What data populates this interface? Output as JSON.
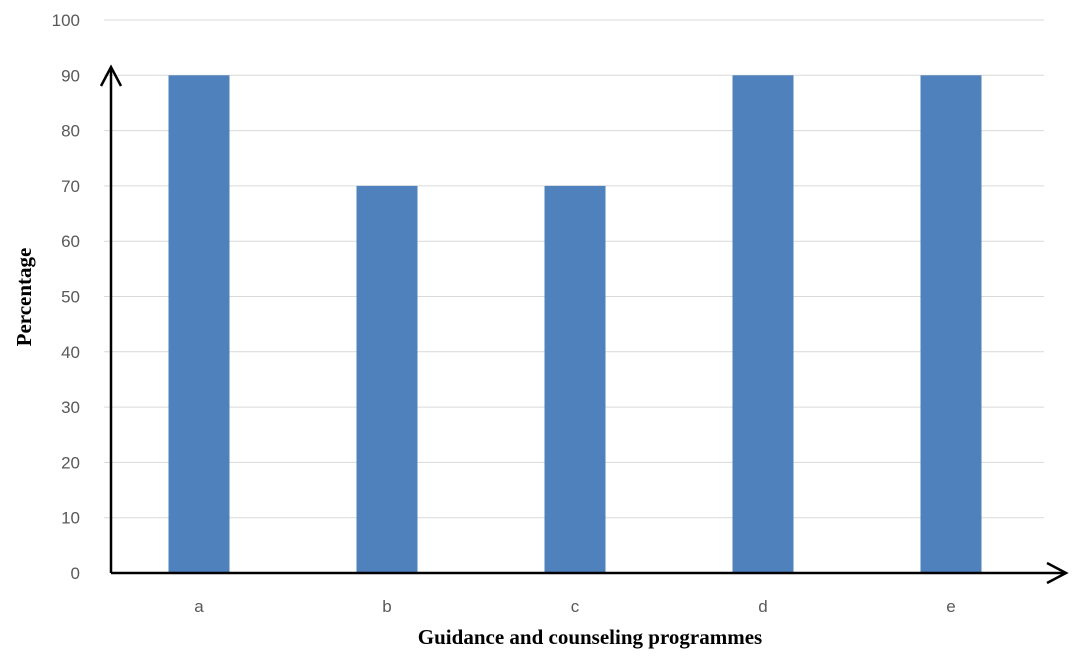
{
  "chart_data": {
    "type": "bar",
    "categories": [
      "a",
      "b",
      "c",
      "d",
      "e"
    ],
    "values": [
      90,
      70,
      70,
      90,
      90
    ],
    "xlabel": "Guidance and counseling programmes",
    "ylabel": "Percentage",
    "ylim": [
      0,
      100
    ],
    "yticks": [
      0,
      10,
      20,
      30,
      40,
      50,
      60,
      70,
      80,
      90,
      100
    ],
    "grid": true,
    "legend": "none",
    "colors": {
      "bar": "#4f81bd",
      "grid": "#d9d9d9",
      "axis": "#000000"
    }
  }
}
